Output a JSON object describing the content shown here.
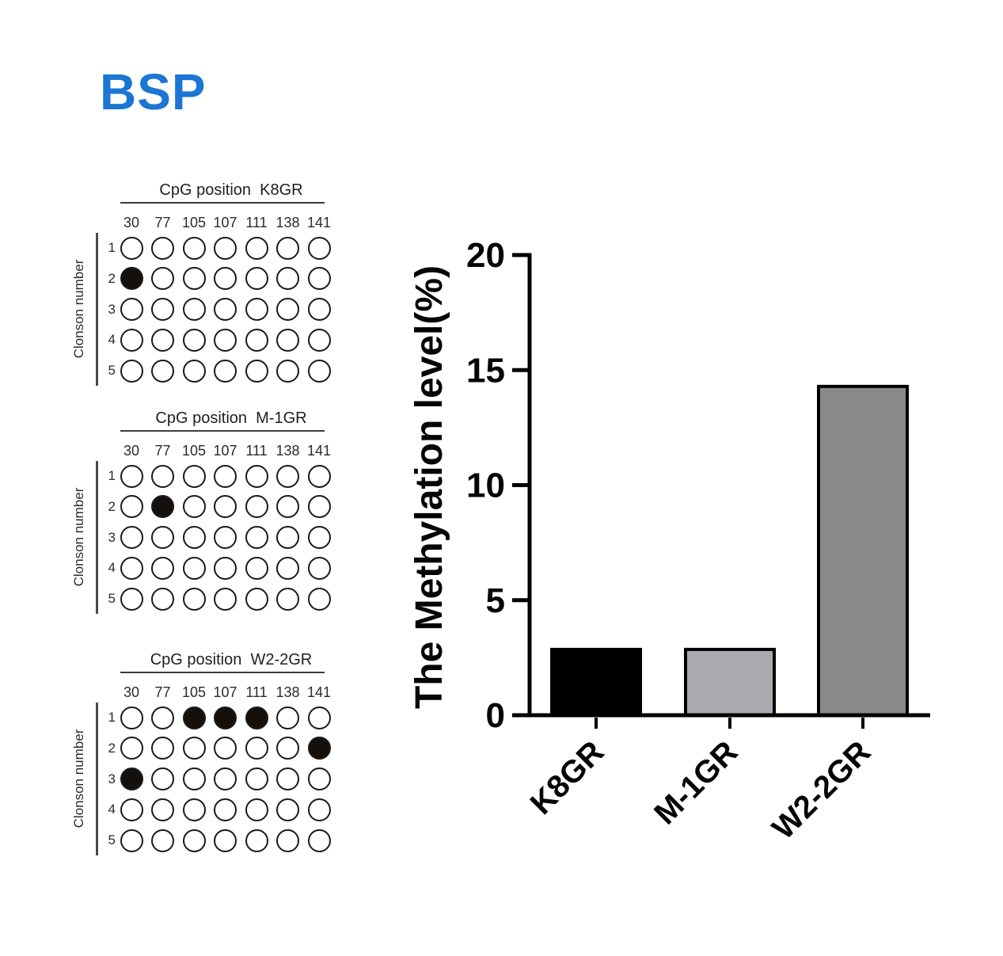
{
  "figure_title": {
    "text": "BSP",
    "color": "#1b75d2"
  },
  "dot_grids": {
    "row_axis_label": "Clonson number",
    "columns": [
      "30",
      "77",
      "105",
      "107",
      "111",
      "138",
      "141"
    ],
    "row_labels": [
      "1",
      "2",
      "3",
      "4",
      "5"
    ],
    "circle_colors": {
      "empty_fill": "#ffffff",
      "filled_fill": "#16100d",
      "stroke": "#1a1a1a"
    },
    "grids": [
      {
        "title": "CpG position  K8GR",
        "name": "K8GR",
        "filled_cells_row_col": [
          [
            1,
            0
          ]
        ]
      },
      {
        "title": "CpG position  M-1GR",
        "name": "M-1GR",
        "filled_cells_row_col": [
          [
            1,
            1
          ]
        ]
      },
      {
        "title": "CpG position  W2-2GR",
        "name": "W2-2GR",
        "filled_cells_row_col": [
          [
            0,
            2
          ],
          [
            0,
            3
          ],
          [
            0,
            4
          ],
          [
            1,
            6
          ],
          [
            2,
            0
          ]
        ]
      }
    ]
  },
  "chart_data": {
    "type": "bar",
    "categories": [
      "K8GR",
      "M-1GR",
      "W2-2GR"
    ],
    "values": [
      2.86,
      2.86,
      14.29
    ],
    "bar_colors": [
      "#000000",
      "#abaab0",
      "#8a8a8a"
    ],
    "bar_outline": "#000000",
    "title": "",
    "xlabel": "",
    "ylabel": "The Methylation level(%)",
    "ylim": [
      0,
      20
    ],
    "yticks": [
      0,
      5,
      10,
      15,
      20
    ],
    "grid": false,
    "legend": false
  }
}
